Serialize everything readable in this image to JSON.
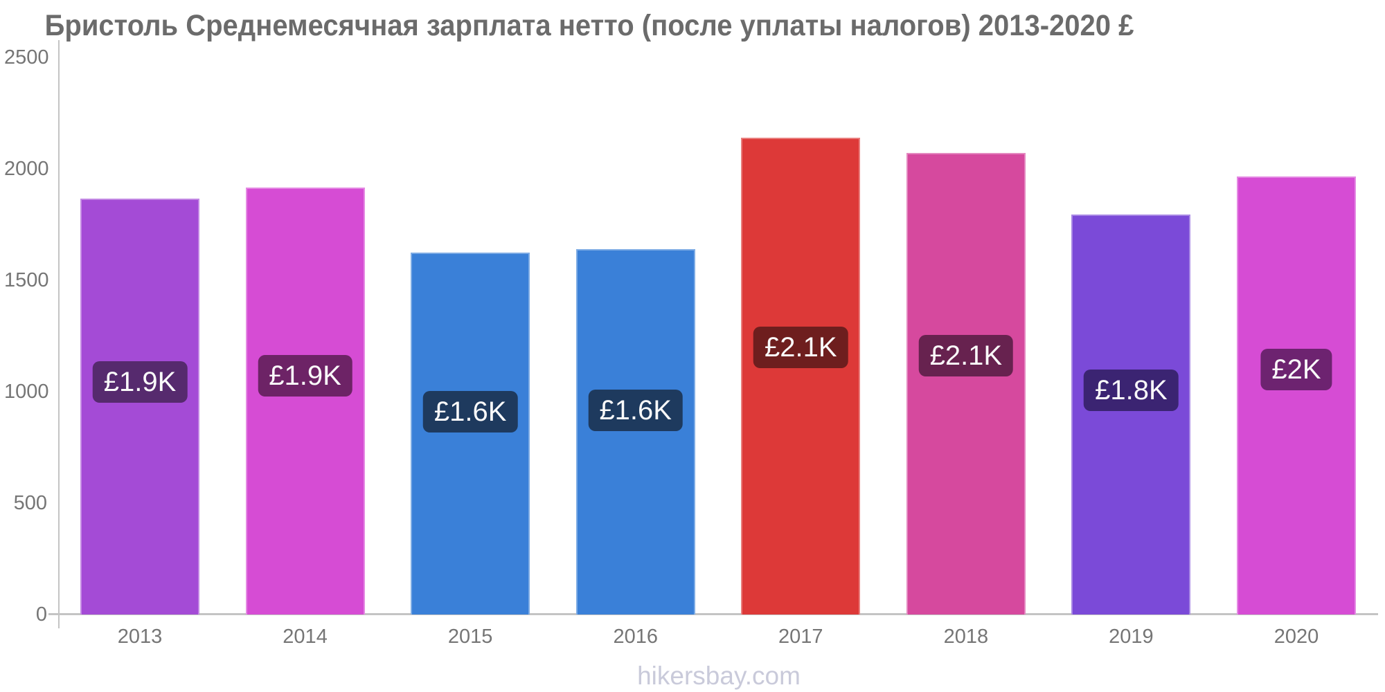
{
  "chart_data": {
    "type": "bar",
    "title": "Бристоль Среднемесячная зарплата нетто (после уплаты налогов) 2013-2020 £",
    "categories": [
      "2013",
      "2014",
      "2015",
      "2016",
      "2017",
      "2018",
      "2019",
      "2020"
    ],
    "values": [
      1865,
      1915,
      1625,
      1640,
      2140,
      2070,
      1795,
      1965
    ],
    "bar_labels": [
      "£1.9K",
      "£1.9K",
      "£1.6K",
      "£1.6K",
      "£2.1K",
      "£2.1K",
      "£1.8K",
      "£2K"
    ],
    "bar_colors": [
      "#a44bd6",
      "#d64cd4",
      "#3a80d8",
      "#3a80d8",
      "#dd3938",
      "#d6499e",
      "#7b4ad8",
      "#d64cd4"
    ],
    "badge_colors": [
      "#562a6e",
      "#6d2366",
      "#1e3a5e",
      "#1e3a5e",
      "#6e1e1e",
      "#67224f",
      "#3b2472",
      "#6d2370"
    ],
    "xlabel": "",
    "ylabel": "",
    "ylim": [
      0,
      2500
    ],
    "yticks": [
      0,
      500,
      1000,
      1500,
      2000,
      2500
    ],
    "grid": false,
    "legend": false,
    "currency": "£"
  },
  "watermark": "hikersbay.com",
  "colors": {
    "axis-color": "#c4c4c4",
    "tick-color": "#757575",
    "title-color": "#6b6b6b",
    "watermark-color": "#c9cada"
  }
}
